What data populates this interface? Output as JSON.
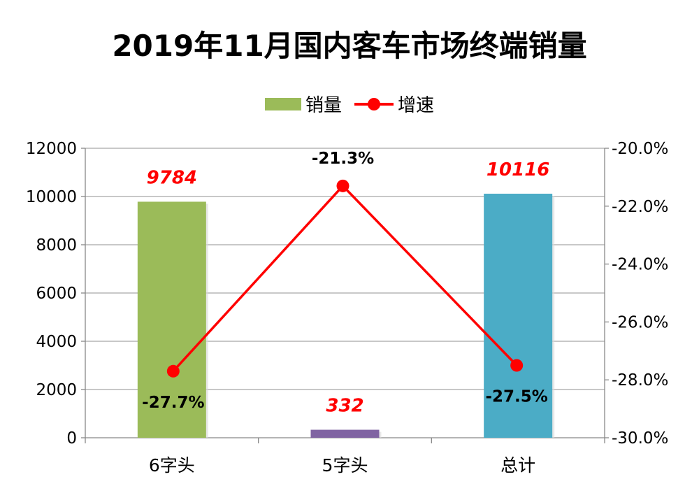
{
  "chart_data": {
    "type": "bar",
    "title": "2019年11月国内客车市场终端销量",
    "categories": [
      "6字头",
      "5字头",
      "总计"
    ],
    "series": [
      {
        "name": "销量",
        "kind": "bar",
        "axis": "left",
        "values": [
          9784,
          332,
          10116
        ],
        "labels": [
          "9784",
          "332",
          "10116"
        ],
        "bar_colors": [
          "#9BBB59",
          "#8064A2",
          "#4BACC6"
        ],
        "label_color": "#FF0000"
      },
      {
        "name": "增速",
        "kind": "line",
        "axis": "right",
        "values": [
          -27.7,
          -21.3,
          -27.5
        ],
        "labels": [
          "-27.7%",
          "-21.3%",
          "-27.5%"
        ],
        "color": "#FF0000"
      }
    ],
    "y_left": {
      "lim": [
        0,
        12000
      ],
      "ticks": [
        0,
        2000,
        4000,
        6000,
        8000,
        10000,
        12000
      ],
      "tick_labels": [
        "0",
        "2000",
        "4000",
        "6000",
        "8000",
        "10000",
        "12000"
      ]
    },
    "y_right": {
      "lim": [
        -30,
        -20
      ],
      "ticks": [
        -30,
        -28,
        -26,
        -24,
        -22,
        -20
      ],
      "tick_labels": [
        "-30.0%",
        "-28.0%",
        "-26.0%",
        "-24.0%",
        "-22.0%",
        "-20.0%"
      ]
    },
    "grid": true,
    "legend_position": "top-center",
    "legend": [
      {
        "label": "销量",
        "type": "bar",
        "color": "#9BBB59"
      },
      {
        "label": "增速",
        "type": "line",
        "color": "#FF0000"
      }
    ],
    "xlabel": "",
    "ylabel": ""
  }
}
